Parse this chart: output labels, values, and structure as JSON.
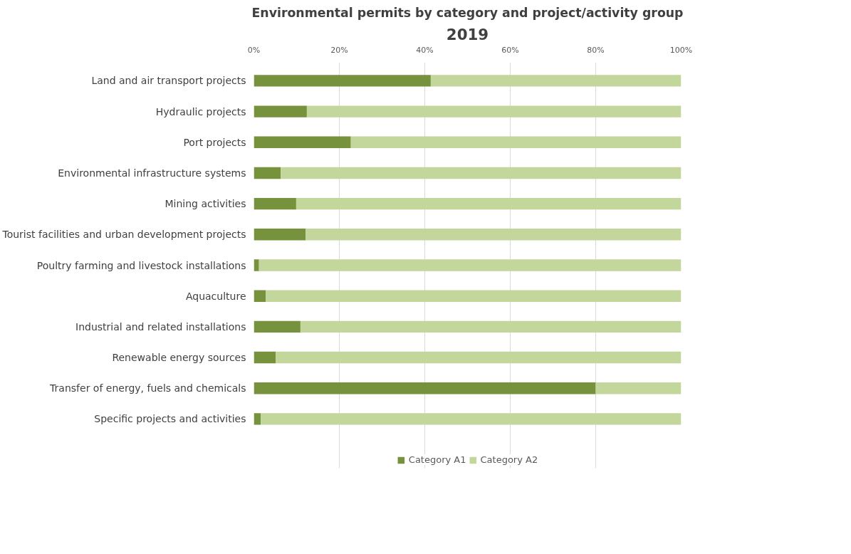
{
  "chart_data": {
    "type": "bar",
    "orientation": "horizontal",
    "stacked": true,
    "title": "Environmental permits by category and project/activity group",
    "subtitle": "2019",
    "categories": [
      "Land and air transport projects",
      "Hydraulic projects",
      "Port projects",
      "Environmental infrastructure systems",
      "Mining activities",
      "Tourist facilities and urban development projects",
      "Poultry farming and livestock installations",
      "Aquaculture",
      "Industrial and related installations",
      "Renewable energy sources",
      "Transfer of energy, fuels and chemicals",
      "Specific projects and activities"
    ],
    "series": [
      {
        "name": "Category A1",
        "color": "#76923c",
        "values": [
          41.4,
          12.4,
          22.7,
          6.3,
          9.9,
          12.1,
          1.2,
          2.8,
          10.9,
          5.1,
          80,
          1.6
        ]
      },
      {
        "name": "Category A2",
        "color": "#c3d69b",
        "values": [
          58.6,
          87.6,
          77.3,
          93.7,
          90.1,
          87.9,
          98.8,
          97.2,
          89.1,
          94.9,
          20,
          98.4
        ]
      }
    ],
    "xlim": [
      0,
      100
    ],
    "xticks": [
      {
        "value": 0,
        "label": "0%"
      },
      {
        "value": 20,
        "label": "20%"
      },
      {
        "value": 40,
        "label": "40%"
      },
      {
        "value": 60,
        "label": "60%"
      },
      {
        "value": 80,
        "label": "80%"
      },
      {
        "value": 100,
        "label": "100%"
      }
    ],
    "grid": "x",
    "legend": "bottom"
  }
}
